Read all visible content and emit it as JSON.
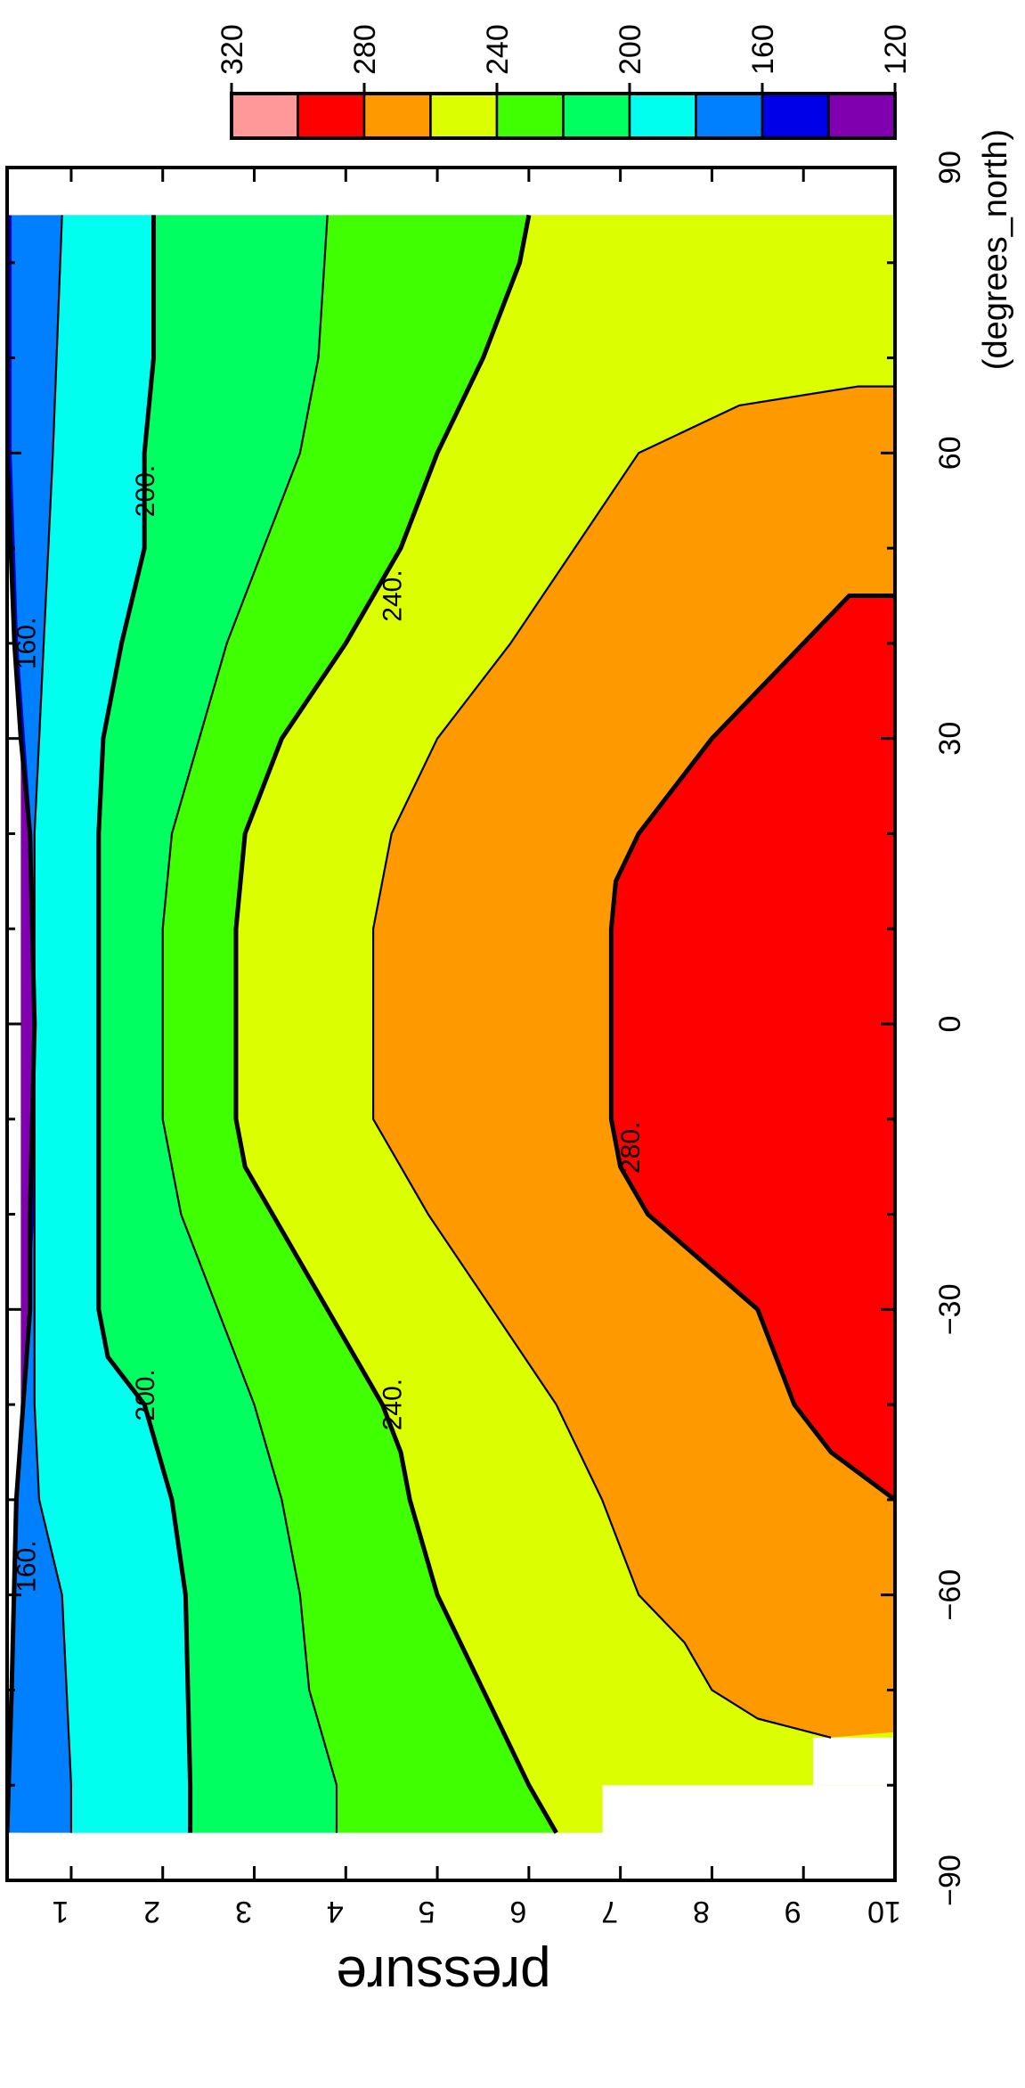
{
  "chart_data": {
    "type": "contour",
    "xlabel": "pressure",
    "ylabel_unit": "(degrees_north)",
    "x_ticks": [
      "1",
      "2",
      "3",
      "4",
      "5",
      "6",
      "7",
      "8",
      "9",
      "10"
    ],
    "y_ticks": [
      "−90",
      "−60",
      "−30",
      "0",
      "30",
      "60",
      "90"
    ],
    "xlim": [
      0.3,
      10
    ],
    "ylim": [
      -90,
      90
    ],
    "colorbar": {
      "ticks": [
        "320",
        "280",
        "240",
        "200",
        "160",
        "120"
      ],
      "levels": [
        120,
        140,
        160,
        180,
        200,
        220,
        240,
        260,
        280,
        300,
        320
      ],
      "colors": [
        "#8000b0",
        "#0000e8",
        "#0080ff",
        "#00ffee",
        "#00ff60",
        "#40ff00",
        "#dcff00",
        "#ff9900",
        "#ff0000",
        "#ff9999"
      ]
    },
    "contour_labels": [
      {
        "text": "160.",
        "pressure": 0.5,
        "lat": -57
      },
      {
        "text": "160.",
        "pressure": 0.5,
        "lat": 40
      },
      {
        "text": "200.",
        "pressure": 1.8,
        "lat": -39
      },
      {
        "text": "200.",
        "pressure": 1.8,
        "lat": 56
      },
      {
        "text": "240.",
        "pressure": 4.5,
        "lat": -40
      },
      {
        "text": "240.",
        "pressure": 4.5,
        "lat": 45
      },
      {
        "text": "280.",
        "pressure": 7.1,
        "lat": -13
      }
    ],
    "bands": [
      {
        "color": "#8000b0",
        "lower": [
          [
            -90,
            0.45
          ],
          [
            90,
            0.45
          ]
        ]
      },
      {
        "color": "#0000e8",
        "lower": [
          [
            -85,
            0.3
          ],
          [
            -70,
            0.35
          ],
          [
            -50,
            0.4
          ],
          [
            -30,
            0.55
          ],
          [
            -20,
            0.55
          ],
          [
            0,
            0.6
          ],
          [
            20,
            0.55
          ],
          [
            30,
            0.45
          ],
          [
            40,
            0.38
          ],
          [
            60,
            0.3
          ],
          [
            85,
            0.3
          ]
        ]
      },
      {
        "color": "#0080ff",
        "lower": [
          [
            -85,
            0.3
          ],
          [
            -80,
            0.3
          ],
          [
            -60,
            0.4
          ],
          [
            -40,
            0.45
          ],
          [
            -20,
            0.6
          ],
          [
            0,
            0.62
          ],
          [
            20,
            0.57
          ],
          [
            40,
            0.42
          ],
          [
            60,
            0.35
          ],
          [
            85,
            0.35
          ]
        ]
      },
      {
        "color": "#00ffee",
        "lower": [
          [
            -85,
            1.0
          ],
          [
            -80,
            1.0
          ],
          [
            -70,
            0.95
          ],
          [
            -60,
            0.9
          ],
          [
            -50,
            0.65
          ],
          [
            -40,
            0.6
          ],
          [
            -30,
            0.6
          ],
          [
            -20,
            0.6
          ],
          [
            0,
            0.6
          ],
          [
            20,
            0.6
          ],
          [
            30,
            0.65
          ],
          [
            40,
            0.7
          ],
          [
            50,
            0.75
          ],
          [
            60,
            0.8
          ],
          [
            85,
            0.9
          ]
        ]
      },
      {
        "color": "#00ff60",
        "lower": [
          [
            -85,
            2.3
          ],
          [
            -80,
            2.3
          ],
          [
            -60,
            2.25
          ],
          [
            -50,
            2.1
          ],
          [
            -40,
            1.8
          ],
          [
            -35,
            1.4
          ],
          [
            -30,
            1.3
          ],
          [
            -20,
            1.3
          ],
          [
            0,
            1.3
          ],
          [
            20,
            1.3
          ],
          [
            30,
            1.35
          ],
          [
            40,
            1.55
          ],
          [
            50,
            1.8
          ],
          [
            60,
            1.8
          ],
          [
            70,
            1.9
          ],
          [
            85,
            1.9
          ]
        ]
      },
      {
        "color": "#40ff00",
        "lower": [
          [
            -85,
            3.9
          ],
          [
            -80,
            3.9
          ],
          [
            -70,
            3.6
          ],
          [
            -60,
            3.5
          ],
          [
            -50,
            3.3
          ],
          [
            -40,
            3.0
          ],
          [
            -30,
            2.6
          ],
          [
            -20,
            2.2
          ],
          [
            -10,
            2.0
          ],
          [
            0,
            2.0
          ],
          [
            10,
            2.0
          ],
          [
            20,
            2.1
          ],
          [
            30,
            2.4
          ],
          [
            40,
            2.7
          ],
          [
            50,
            3.1
          ],
          [
            60,
            3.5
          ],
          [
            70,
            3.7
          ],
          [
            85,
            3.8
          ]
        ]
      },
      {
        "color": "#dcff00",
        "lower": [
          [
            -85,
            6.3
          ],
          [
            -80,
            6.0
          ],
          [
            -70,
            5.5
          ],
          [
            -60,
            5.0
          ],
          [
            -50,
            4.7
          ],
          [
            -45,
            4.6
          ],
          [
            -40,
            4.4
          ],
          [
            -35,
            4.1
          ],
          [
            -30,
            3.8
          ],
          [
            -20,
            3.2
          ],
          [
            -15,
            2.9
          ],
          [
            -10,
            2.8
          ],
          [
            0,
            2.8
          ],
          [
            10,
            2.8
          ],
          [
            20,
            2.9
          ],
          [
            30,
            3.3
          ],
          [
            40,
            4.0
          ],
          [
            50,
            4.6
          ],
          [
            60,
            5.0
          ],
          [
            70,
            5.5
          ],
          [
            80,
            5.9
          ],
          [
            85,
            6.0
          ]
        ]
      },
      {
        "color": "#ff9900",
        "lower": [
          [
            -74,
            10.5
          ],
          [
            -75,
            9.3
          ],
          [
            -73,
            8.5
          ],
          [
            -70,
            8.0
          ],
          [
            -65,
            7.7
          ],
          [
            -60,
            7.2
          ],
          [
            -50,
            6.8
          ],
          [
            -40,
            6.3
          ],
          [
            -30,
            5.6
          ],
          [
            -20,
            4.9
          ],
          [
            -15,
            4.6
          ],
          [
            -10,
            4.3
          ],
          [
            0,
            4.3
          ],
          [
            10,
            4.3
          ],
          [
            15,
            4.4
          ],
          [
            20,
            4.5
          ],
          [
            30,
            5.0
          ],
          [
            40,
            5.8
          ],
          [
            50,
            6.5
          ],
          [
            60,
            7.2
          ],
          [
            65,
            8.3
          ],
          [
            67,
            9.6
          ],
          [
            67,
            10.5
          ]
        ]
      },
      {
        "color": "#ff0000",
        "lower": [
          [
            -50,
            10.5
          ],
          [
            -50,
            10.0
          ],
          [
            -45,
            9.3
          ],
          [
            -40,
            8.9
          ],
          [
            -30,
            8.5
          ],
          [
            -20,
            7.3
          ],
          [
            -15,
            7.0
          ],
          [
            -10,
            6.9
          ],
          [
            0,
            6.9
          ],
          [
            10,
            6.9
          ],
          [
            15,
            6.95
          ],
          [
            20,
            7.2
          ],
          [
            30,
            8.0
          ],
          [
            40,
            9.0
          ],
          [
            45,
            9.5
          ],
          [
            45,
            10.5
          ]
        ]
      }
    ],
    "contour_lines": [
      {
        "bold": true,
        "pts": [
          [
            -85,
            0.3
          ],
          [
            -70,
            0.35
          ],
          [
            -50,
            0.4
          ],
          [
            -30,
            0.55
          ],
          [
            -20,
            0.55
          ],
          [
            0,
            0.6
          ],
          [
            20,
            0.55
          ],
          [
            30,
            0.45
          ],
          [
            40,
            0.38
          ],
          [
            60,
            0.3
          ],
          [
            85,
            0.3
          ]
        ]
      },
      {
        "bold": false,
        "pts": [
          [
            -85,
            1.0
          ],
          [
            -80,
            1.0
          ],
          [
            -70,
            0.95
          ],
          [
            -60,
            0.9
          ],
          [
            -50,
            0.65
          ],
          [
            -40,
            0.6
          ],
          [
            -30,
            0.6
          ],
          [
            -20,
            0.6
          ],
          [
            0,
            0.6
          ],
          [
            20,
            0.6
          ],
          [
            30,
            0.65
          ],
          [
            40,
            0.7
          ],
          [
            50,
            0.75
          ],
          [
            60,
            0.8
          ],
          [
            85,
            0.9
          ]
        ]
      },
      {
        "bold": true,
        "pts": [
          [
            -85,
            2.3
          ],
          [
            -80,
            2.3
          ],
          [
            -60,
            2.25
          ],
          [
            -50,
            2.1
          ],
          [
            -40,
            1.8
          ],
          [
            -35,
            1.4
          ],
          [
            -30,
            1.3
          ],
          [
            -20,
            1.3
          ],
          [
            0,
            1.3
          ],
          [
            20,
            1.3
          ],
          [
            30,
            1.35
          ],
          [
            40,
            1.55
          ],
          [
            50,
            1.8
          ],
          [
            60,
            1.8
          ],
          [
            70,
            1.9
          ],
          [
            85,
            1.9
          ]
        ]
      },
      {
        "bold": false,
        "pts": [
          [
            -85,
            3.9
          ],
          [
            -80,
            3.9
          ],
          [
            -70,
            3.6
          ],
          [
            -60,
            3.5
          ],
          [
            -50,
            3.3
          ],
          [
            -40,
            3.0
          ],
          [
            -30,
            2.6
          ],
          [
            -20,
            2.2
          ],
          [
            -10,
            2.0
          ],
          [
            0,
            2.0
          ],
          [
            10,
            2.0
          ],
          [
            20,
            2.1
          ],
          [
            30,
            2.4
          ],
          [
            40,
            2.7
          ],
          [
            50,
            3.1
          ],
          [
            60,
            3.5
          ],
          [
            70,
            3.7
          ],
          [
            85,
            3.8
          ]
        ]
      },
      {
        "bold": true,
        "pts": [
          [
            -85,
            6.3
          ],
          [
            -80,
            6.0
          ],
          [
            -70,
            5.5
          ],
          [
            -60,
            5.0
          ],
          [
            -50,
            4.7
          ],
          [
            -45,
            4.6
          ],
          [
            -40,
            4.4
          ],
          [
            -35,
            4.1
          ],
          [
            -30,
            3.8
          ],
          [
            -20,
            3.2
          ],
          [
            -15,
            2.9
          ],
          [
            -10,
            2.8
          ],
          [
            0,
            2.8
          ],
          [
            10,
            2.8
          ],
          [
            20,
            2.9
          ],
          [
            30,
            3.3
          ],
          [
            40,
            4.0
          ],
          [
            50,
            4.6
          ],
          [
            60,
            5.0
          ],
          [
            70,
            5.5
          ],
          [
            80,
            5.9
          ],
          [
            85,
            6.0
          ]
        ]
      },
      {
        "bold": false,
        "pts": [
          [
            -75,
            9.3
          ],
          [
            -73,
            8.5
          ],
          [
            -70,
            8.0
          ],
          [
            -65,
            7.7
          ],
          [
            -60,
            7.2
          ],
          [
            -50,
            6.8
          ],
          [
            -40,
            6.3
          ],
          [
            -30,
            5.6
          ],
          [
            -20,
            4.9
          ],
          [
            -15,
            4.6
          ],
          [
            -10,
            4.3
          ],
          [
            0,
            4.3
          ],
          [
            10,
            4.3
          ],
          [
            15,
            4.4
          ],
          [
            20,
            4.5
          ],
          [
            30,
            5.0
          ],
          [
            40,
            5.8
          ],
          [
            50,
            6.5
          ],
          [
            60,
            7.2
          ],
          [
            65,
            8.3
          ],
          [
            67,
            9.6
          ],
          [
            67,
            10.0
          ]
        ]
      },
      {
        "bold": true,
        "pts": [
          [
            -50,
            10.0
          ],
          [
            -45,
            9.3
          ],
          [
            -40,
            8.9
          ],
          [
            -30,
            8.5
          ],
          [
            -20,
            7.3
          ],
          [
            -15,
            7.0
          ],
          [
            -10,
            6.9
          ],
          [
            0,
            6.9
          ],
          [
            10,
            6.9
          ],
          [
            15,
            6.95
          ],
          [
            20,
            7.2
          ],
          [
            30,
            8.0
          ],
          [
            40,
            9.0
          ],
          [
            45,
            9.5
          ],
          [
            45,
            10.0
          ]
        ]
      }
    ],
    "missing_regions": [
      {
        "lat_range": [
          -90,
          -85
        ],
        "pressure_range": [
          0.3,
          10
        ]
      },
      {
        "lat_range": [
          85,
          90
        ],
        "pressure_range": [
          0.3,
          10
        ]
      },
      {
        "lat_range": [
          -90,
          -80
        ],
        "pressure_range": [
          7,
          10
        ]
      },
      {
        "lat_range": [
          -80,
          -75
        ],
        "pressure_range": [
          9.3,
          10
        ]
      }
    ]
  }
}
